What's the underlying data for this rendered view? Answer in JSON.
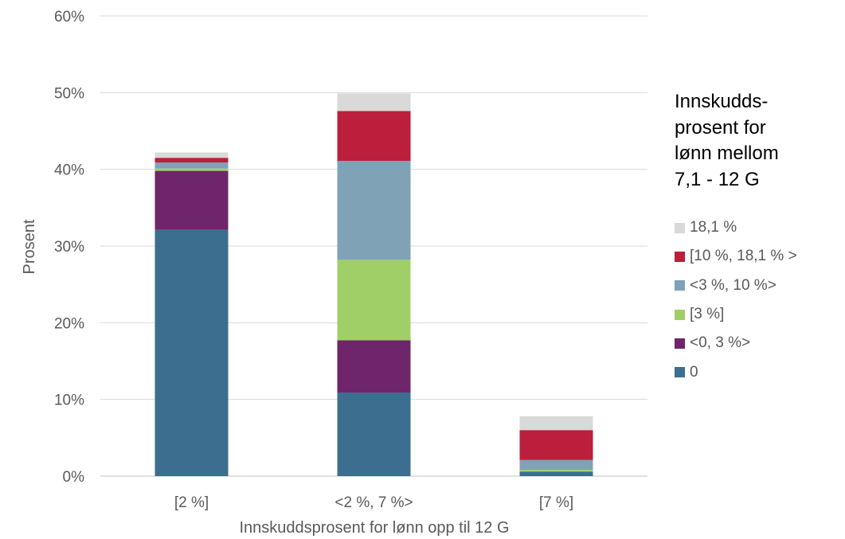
{
  "chart_data": {
    "type": "bar",
    "stacked": true,
    "xlabel": "Innskuddsprosent for lønn opp til 12 G",
    "ylabel": "Prosent",
    "ylim": [
      0,
      60
    ],
    "yticks": [
      0,
      10,
      20,
      30,
      40,
      50,
      60
    ],
    "ytick_labels": [
      "0%",
      "10%",
      "20%",
      "30%",
      "40%",
      "50%",
      "60%"
    ],
    "grid": true,
    "legend_position": "right",
    "legend_title": "Innskudds-\nprosent for\nlønn mellom\n7,1 - 12 G",
    "categories": [
      "[2 %]",
      "<2 %, 7 %>",
      "[7 %]"
    ],
    "series": [
      {
        "name": "0",
        "color": "#3B6E8F",
        "values": [
          32.1,
          10.9,
          0.6
        ]
      },
      {
        "name": "<0, 3 %>",
        "color": "#6E2569",
        "values": [
          7.7,
          6.8,
          0.0
        ]
      },
      {
        "name": "[3 %]",
        "color": "#A0CF67",
        "values": [
          0.3,
          10.5,
          0.2
        ]
      },
      {
        "name": "<3 %, 10 %>",
        "color": "#7FA2B7",
        "values": [
          0.8,
          12.9,
          1.3
        ]
      },
      {
        "name": "[10 %, 18,1 % >",
        "color": "#BB1F3B",
        "values": [
          0.6,
          6.5,
          3.9
        ]
      },
      {
        "name": "18,1 %",
        "color": "#D9D9D9",
        "values": [
          0.7,
          2.3,
          1.8
        ]
      }
    ]
  }
}
